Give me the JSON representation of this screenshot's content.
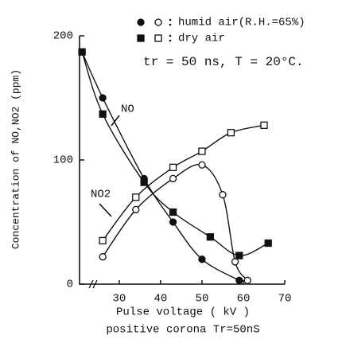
{
  "chart_data": {
    "type": "scatter",
    "ylabel": "Concentration of NO,NO2 (ppm)",
    "xlabel": "Pulse voltage ( kV )",
    "caption": "positive corona Tr=50nS",
    "condition": "tr = 50 ns, T = 20°C.",
    "annotations": [
      "NO",
      "NO2"
    ],
    "xlim": [
      20.4,
      70
    ],
    "xticks": [
      30,
      40,
      50,
      60,
      70
    ],
    "ylim": [
      0,
      200
    ],
    "yticks": [
      0,
      100,
      200
    ],
    "series": [
      {
        "name": "humid air(R.H.=65%)",
        "marker": "filled-circle",
        "color": "#111",
        "x": [
          21,
          26,
          36,
          43,
          50,
          59
        ],
        "values": [
          187,
          150,
          85,
          50,
          20,
          3
        ]
      },
      {
        "name": "dry air",
        "marker": "filled-square",
        "color": "#111",
        "x": [
          21,
          26,
          36,
          43,
          52,
          59,
          66
        ],
        "values": [
          187,
          137,
          82,
          58,
          38,
          23,
          33
        ]
      },
      {
        "name": "humid air(R.H.=65%)",
        "marker": "open-circle",
        "color": "#111",
        "x": [
          26,
          34,
          43,
          50,
          55,
          58,
          61
        ],
        "values": [
          22,
          60,
          85,
          96,
          72,
          18,
          3
        ]
      },
      {
        "name": "dry air",
        "marker": "open-square",
        "color": "#111",
        "x": [
          26,
          34,
          43,
          50,
          57,
          65
        ],
        "values": [
          35,
          70,
          94,
          107,
          122,
          128
        ]
      }
    ]
  }
}
